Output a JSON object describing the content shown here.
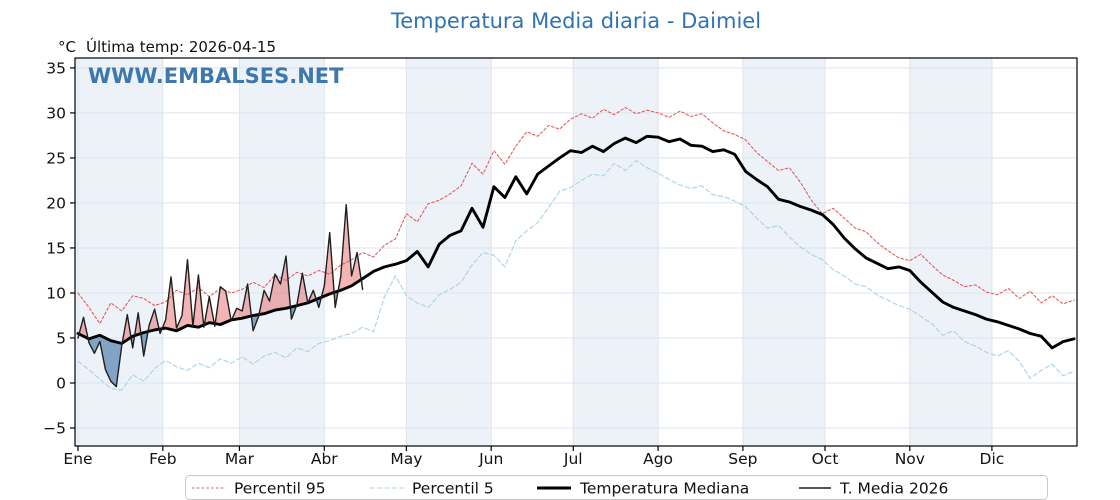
{
  "header": {
    "title": "Temperatura Media diaria - Daimiel",
    "units_label": "°C",
    "last_temp_label": "Última temp: 2026-04-15",
    "watermark": "WWW.EMBALSES.NET"
  },
  "colors": {
    "title": "#2e74b5",
    "watermark": "#2e6da8",
    "percentil95": "#e45d5d",
    "percentil5": "#a9d2e6",
    "mediana": "#000000",
    "media2026": "#1f1f1f",
    "fill_above": "#e66a6a",
    "fill_below": "#4678a8",
    "month_band": "#edf2f8",
    "grid": "#dde4ec",
    "spine": "#000000",
    "legend_border": "#c8c8c8"
  },
  "chart_data": {
    "type": "line",
    "title": "Temperatura Media diaria - Daimiel",
    "xlabel": "",
    "ylabel": "°C",
    "x_unit": "day_of_year",
    "grid": true,
    "alt_month_shading": true,
    "x_axis": {
      "tick_labels": [
        "Ene",
        "Feb",
        "Mar",
        "Abr",
        "May",
        "Jun",
        "Jul",
        "Ago",
        "Sep",
        "Oct",
        "Nov",
        "Dic"
      ],
      "month_start_days": [
        0,
        31,
        59,
        90,
        120,
        151,
        181,
        212,
        243,
        273,
        304,
        334
      ],
      "days_in_year": 365
    },
    "y_axis": {
      "tick_values": [
        -5,
        0,
        5,
        10,
        15,
        20,
        25,
        30,
        35
      ],
      "tick_labels": [
        "−5",
        "0",
        "5",
        "10",
        "15",
        "20",
        "25",
        "30",
        "35"
      ],
      "ylim": [
        -7.0,
        36.1
      ]
    },
    "series": [
      {
        "name": "Percentil 95",
        "style": "dashed",
        "color": "#e45d5d",
        "width": 1.1,
        "dash": "2.5,2.3",
        "x": [
          0,
          4,
          8,
          12,
          16,
          20,
          24,
          28,
          32,
          36,
          40,
          44,
          48,
          52,
          56,
          60,
          64,
          68,
          72,
          76,
          80,
          84,
          88,
          92,
          96,
          100,
          104,
          108,
          112,
          116,
          120,
          124,
          128,
          132,
          136,
          140,
          144,
          148,
          152,
          156,
          160,
          164,
          168,
          172,
          176,
          180,
          184,
          188,
          192,
          196,
          200,
          204,
          208,
          212,
          216,
          220,
          224,
          228,
          232,
          236,
          240,
          244,
          248,
          252,
          256,
          260,
          264,
          268,
          272,
          276,
          280,
          284,
          288,
          292,
          296,
          300,
          304,
          308,
          312,
          316,
          320,
          324,
          328,
          332,
          336,
          340,
          344,
          348,
          352,
          356,
          360,
          364
        ],
        "y": [
          10.0,
          8.4,
          6.6,
          8.9,
          8.0,
          9.7,
          9.4,
          8.6,
          9.0,
          10.3,
          9.8,
          10.6,
          9.6,
          10.5,
          10.0,
          10.4,
          11.2,
          10.6,
          12.0,
          11.4,
          12.3,
          11.9,
          12.5,
          12.1,
          13.1,
          13.7,
          14.5,
          14.0,
          15.3,
          16.0,
          18.8,
          17.9,
          19.9,
          20.3,
          21.0,
          21.9,
          24.4,
          23.2,
          25.8,
          24.3,
          26.3,
          27.9,
          27.4,
          28.6,
          28.2,
          29.3,
          29.9,
          29.4,
          30.4,
          29.8,
          30.6,
          29.9,
          30.3,
          30.0,
          29.5,
          30.2,
          29.6,
          29.9,
          28.9,
          28.0,
          27.6,
          27.0,
          25.6,
          24.6,
          23.6,
          23.9,
          22.3,
          20.3,
          18.8,
          19.4,
          18.3,
          17.2,
          16.8,
          15.6,
          14.7,
          13.9,
          13.6,
          14.3,
          13.1,
          12.0,
          11.4,
          10.7,
          10.9,
          10.1,
          9.8,
          10.5,
          9.4,
          10.2,
          8.9,
          9.7,
          8.8,
          9.2
        ]
      },
      {
        "name": "Percentil 5",
        "style": "dashed",
        "color": "#a9d2e6",
        "width": 1.1,
        "dash": "4.5,2.8",
        "x": [
          0,
          4,
          8,
          12,
          16,
          20,
          24,
          28,
          32,
          36,
          40,
          44,
          48,
          52,
          56,
          60,
          64,
          68,
          72,
          76,
          80,
          84,
          88,
          92,
          96,
          100,
          104,
          108,
          112,
          116,
          120,
          124,
          128,
          132,
          136,
          140,
          144,
          148,
          152,
          156,
          160,
          164,
          168,
          172,
          176,
          180,
          184,
          188,
          192,
          196,
          200,
          204,
          208,
          212,
          216,
          220,
          224,
          228,
          232,
          236,
          240,
          244,
          248,
          252,
          256,
          260,
          264,
          268,
          272,
          276,
          280,
          284,
          288,
          292,
          296,
          300,
          304,
          308,
          312,
          316,
          320,
          324,
          328,
          332,
          336,
          340,
          344,
          348,
          352,
          356,
          360,
          364
        ],
        "y": [
          2.4,
          1.5,
          0.4,
          -0.6,
          -0.8,
          0.9,
          0.2,
          1.6,
          2.5,
          1.8,
          1.4,
          2.2,
          1.7,
          2.7,
          2.2,
          2.9,
          2.1,
          3.0,
          3.4,
          2.8,
          3.9,
          3.5,
          4.4,
          4.7,
          5.2,
          5.5,
          6.2,
          5.7,
          9.6,
          11.9,
          9.7,
          8.9,
          8.4,
          9.8,
          10.4,
          11.2,
          13.1,
          14.5,
          14.2,
          12.9,
          15.8,
          16.9,
          17.8,
          19.5,
          21.3,
          21.7,
          22.5,
          23.2,
          23.0,
          24.4,
          23.6,
          24.7,
          23.9,
          23.3,
          22.6,
          22.0,
          21.6,
          21.9,
          20.9,
          20.7,
          20.2,
          19.6,
          18.3,
          17.2,
          17.5,
          16.2,
          15.1,
          14.3,
          13.7,
          12.6,
          11.9,
          11.0,
          10.7,
          9.8,
          9.2,
          8.6,
          8.2,
          7.4,
          6.6,
          5.3,
          5.8,
          4.6,
          4.1,
          3.4,
          3.0,
          3.6,
          2.4,
          0.5,
          1.4,
          2.1,
          0.8,
          1.3
        ]
      },
      {
        "name": "Temperatura Mediana",
        "style": "solid",
        "color": "#000000",
        "width": 2.9,
        "dash": "",
        "x": [
          0,
          4,
          8,
          12,
          16,
          20,
          24,
          28,
          32,
          36,
          40,
          44,
          48,
          52,
          56,
          60,
          64,
          68,
          72,
          76,
          80,
          84,
          88,
          92,
          96,
          100,
          104,
          108,
          112,
          116,
          120,
          124,
          128,
          132,
          136,
          140,
          144,
          148,
          152,
          156,
          160,
          164,
          168,
          172,
          176,
          180,
          184,
          188,
          192,
          196,
          200,
          204,
          208,
          212,
          216,
          220,
          224,
          228,
          232,
          236,
          240,
          244,
          248,
          252,
          256,
          260,
          264,
          268,
          272,
          276,
          280,
          284,
          288,
          292,
          296,
          300,
          304,
          308,
          312,
          316,
          320,
          324,
          328,
          332,
          336,
          340,
          344,
          348,
          352,
          356,
          360,
          364
        ],
        "y": [
          5.5,
          4.9,
          5.3,
          4.7,
          4.4,
          5.2,
          5.6,
          5.9,
          6.1,
          5.8,
          6.4,
          6.2,
          6.7,
          6.5,
          7.0,
          7.2,
          7.5,
          7.7,
          8.1,
          8.3,
          8.6,
          8.9,
          9.4,
          9.9,
          10.3,
          10.8,
          11.6,
          12.4,
          12.9,
          13.2,
          13.6,
          14.6,
          12.9,
          15.4,
          16.4,
          16.9,
          19.4,
          17.3,
          21.8,
          20.6,
          22.9,
          21.0,
          23.2,
          24.1,
          25.0,
          25.8,
          25.6,
          26.3,
          25.7,
          26.6,
          27.2,
          26.7,
          27.4,
          27.3,
          26.8,
          27.1,
          26.4,
          26.3,
          25.7,
          25.9,
          25.4,
          23.5,
          22.6,
          21.8,
          20.4,
          20.1,
          19.6,
          19.2,
          18.7,
          17.6,
          16.1,
          14.9,
          13.9,
          13.3,
          12.7,
          12.9,
          12.5,
          11.2,
          10.1,
          9.0,
          8.4,
          8.0,
          7.6,
          7.1,
          6.8,
          6.4,
          6.0,
          5.5,
          5.2,
          3.9,
          4.6,
          4.9
        ]
      },
      {
        "name": "T. Media 2026",
        "style": "solid",
        "color": "#1f1f1f",
        "width": 1.4,
        "dash": "",
        "x": [
          0,
          2,
          4,
          6,
          8,
          10,
          12,
          14,
          16,
          18,
          20,
          22,
          24,
          26,
          28,
          30,
          32,
          34,
          36,
          38,
          40,
          42,
          44,
          46,
          48,
          50,
          52,
          54,
          56,
          58,
          60,
          62,
          64,
          66,
          68,
          70,
          72,
          74,
          76,
          78,
          80,
          82,
          84,
          86,
          88,
          90,
          92,
          94,
          96,
          98,
          100,
          102,
          104
        ],
        "y": [
          5.0,
          7.3,
          4.5,
          3.3,
          4.6,
          1.5,
          0.2,
          -0.4,
          4.2,
          7.6,
          3.9,
          7.8,
          3.0,
          6.4,
          8.2,
          5.5,
          7.0,
          11.8,
          6.1,
          7.5,
          13.7,
          6.3,
          12.0,
          6.2,
          9.6,
          6.3,
          10.7,
          10.2,
          6.9,
          8.3,
          8.0,
          11.0,
          5.8,
          7.4,
          10.3,
          9.1,
          12.1,
          11.0,
          14.1,
          7.1,
          8.7,
          12.2,
          8.9,
          10.3,
          8.4,
          10.8,
          16.7,
          8.4,
          11.8,
          19.8,
          11.9,
          14.5,
          10.4
        ]
      }
    ],
    "fill_between": {
      "reference": "Temperatura Mediana",
      "target": "T. Media 2026",
      "above_color": "#e66a6a",
      "above_opacity": 0.5,
      "below_color": "#4678a8",
      "below_opacity": 0.65
    }
  },
  "legend": {
    "items": [
      {
        "label": "Percentil 95",
        "color": "#e45d5d",
        "dash": "2.5,2.3",
        "width": 1.1
      },
      {
        "label": "Percentil 5",
        "color": "#a9d2e6",
        "dash": "4.5,2.8",
        "width": 1.1
      },
      {
        "label": "Temperatura Mediana",
        "color": "#000000",
        "dash": "",
        "width": 3.0
      },
      {
        "label": "T. Media 2026",
        "color": "#1f1f1f",
        "dash": "",
        "width": 1.4
      }
    ]
  }
}
